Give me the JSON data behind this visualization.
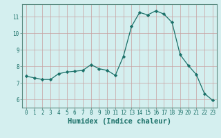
{
  "xlabel": "Humidex (Indice chaleur)",
  "ylabel": "",
  "x": [
    0,
    1,
    2,
    3,
    4,
    5,
    6,
    7,
    8,
    9,
    10,
    11,
    12,
    13,
    14,
    15,
    16,
    17,
    18,
    19,
    20,
    21,
    22,
    23
  ],
  "y": [
    7.4,
    7.3,
    7.2,
    7.2,
    7.55,
    7.65,
    7.7,
    7.75,
    8.1,
    7.85,
    7.75,
    7.45,
    8.6,
    10.4,
    11.25,
    11.1,
    11.35,
    11.15,
    10.65,
    8.7,
    8.05,
    7.5,
    6.35,
    5.95
  ],
  "line_color": "#1a7068",
  "marker_color": "#1a7068",
  "bg_color": "#d4efef",
  "grid_color": "#c8a0a0",
  "axis_color": "#1a7068",
  "border_color": "#5a8a80",
  "ylim": [
    5.5,
    11.75
  ],
  "xlim": [
    -0.5,
    23.5
  ],
  "yticks": [
    6,
    7,
    8,
    9,
    10,
    11
  ],
  "xticks": [
    0,
    1,
    2,
    3,
    4,
    5,
    6,
    7,
    8,
    9,
    10,
    11,
    12,
    13,
    14,
    15,
    16,
    17,
    18,
    19,
    20,
    21,
    22,
    23
  ],
  "tick_fontsize": 5.5,
  "label_fontsize": 7.5
}
